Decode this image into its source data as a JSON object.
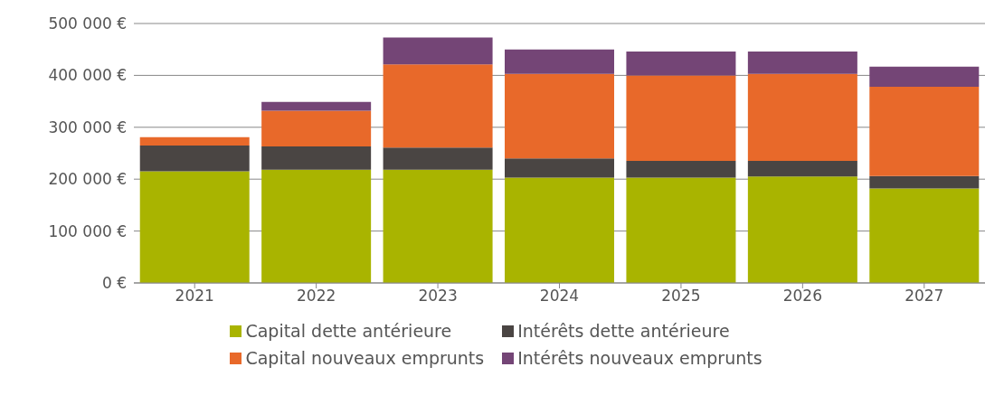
{
  "chart_data": {
    "type": "bar",
    "stacked": true,
    "categories": [
      "2021",
      "2022",
      "2023",
      "2024",
      "2025",
      "2026",
      "2027"
    ],
    "series": [
      {
        "name": "Capital dette antérieure",
        "color": "#a9b400",
        "values": [
          215000,
          218000,
          218000,
          203000,
          203000,
          205000,
          182000
        ]
      },
      {
        "name": "Intérêts dette antérieure",
        "color": "#4a4543",
        "values": [
          50000,
          45000,
          43000,
          37000,
          32000,
          30000,
          24000
        ]
      },
      {
        "name": "Capital nouveaux emprunts",
        "color": "#e8692a",
        "values": [
          16000,
          69000,
          160000,
          163000,
          165000,
          168000,
          172000
        ]
      },
      {
        "name": "Intérêts nouveaux emprunts",
        "color": "#744576",
        "values": [
          0,
          17000,
          52000,
          47000,
          46000,
          43000,
          39000
        ]
      }
    ],
    "ylim": [
      0,
      500000
    ],
    "yticks": [
      {
        "value": 0,
        "label": "0 €"
      },
      {
        "value": 100000,
        "label": "100 000 €"
      },
      {
        "value": 200000,
        "label": "200 000 €"
      },
      {
        "value": 300000,
        "label": "300 000 €"
      },
      {
        "value": 400000,
        "label": "400 000 €"
      },
      {
        "value": 500000,
        "label": "500 000 €"
      }
    ],
    "grid": "y",
    "legend": "bottom"
  }
}
